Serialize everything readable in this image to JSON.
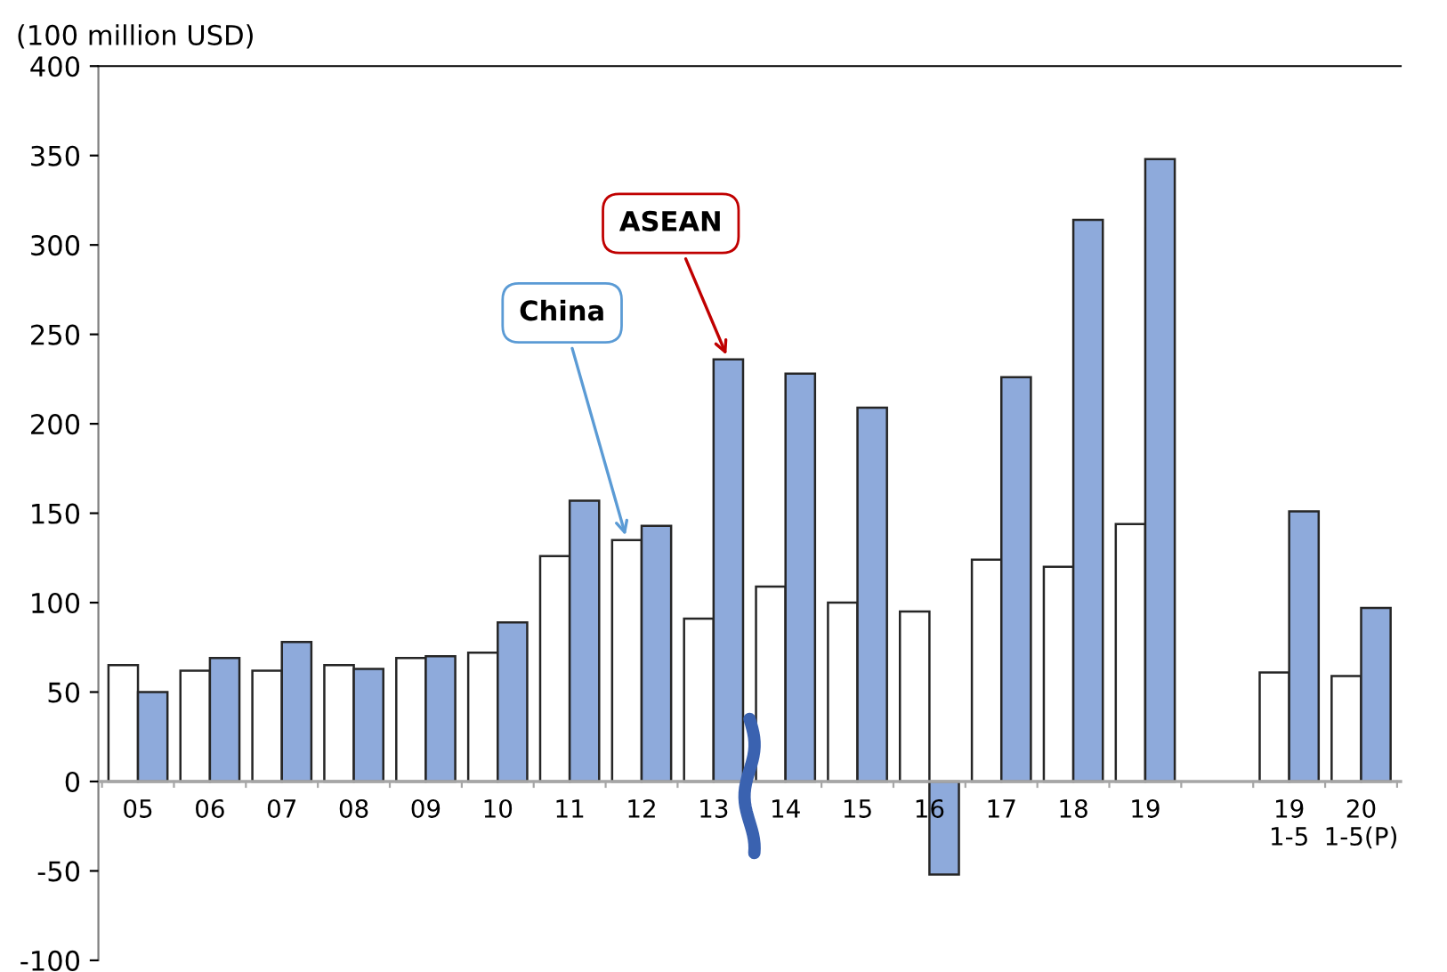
{
  "chart_data": {
    "type": "bar",
    "ylabel": "(100 million USD)",
    "categories": [
      "05",
      "06",
      "07",
      "08",
      "09",
      "10",
      "11",
      "12",
      "13",
      "14",
      "15",
      "16",
      "17",
      "18",
      "19",
      null,
      "19\n1-5",
      "20\n1-5(P)"
    ],
    "series": [
      {
        "name": "China",
        "color": "#ffffff",
        "values": [
          65,
          62,
          62,
          65,
          69,
          72,
          126,
          135,
          91,
          109,
          100,
          95,
          124,
          120,
          144,
          null,
          61,
          59
        ]
      },
      {
        "name": "ASEAN",
        "color": "#8eaadb",
        "values": [
          50,
          69,
          78,
          63,
          70,
          89,
          157,
          143,
          236,
          228,
          209,
          -52,
          226,
          314,
          348,
          null,
          151,
          97
        ]
      }
    ],
    "ylim": [
      -100,
      400
    ],
    "yticks": [
      -100,
      -50,
      0,
      50,
      100,
      150,
      200,
      250,
      300,
      350,
      400
    ],
    "grid": false,
    "legend": false
  }
}
